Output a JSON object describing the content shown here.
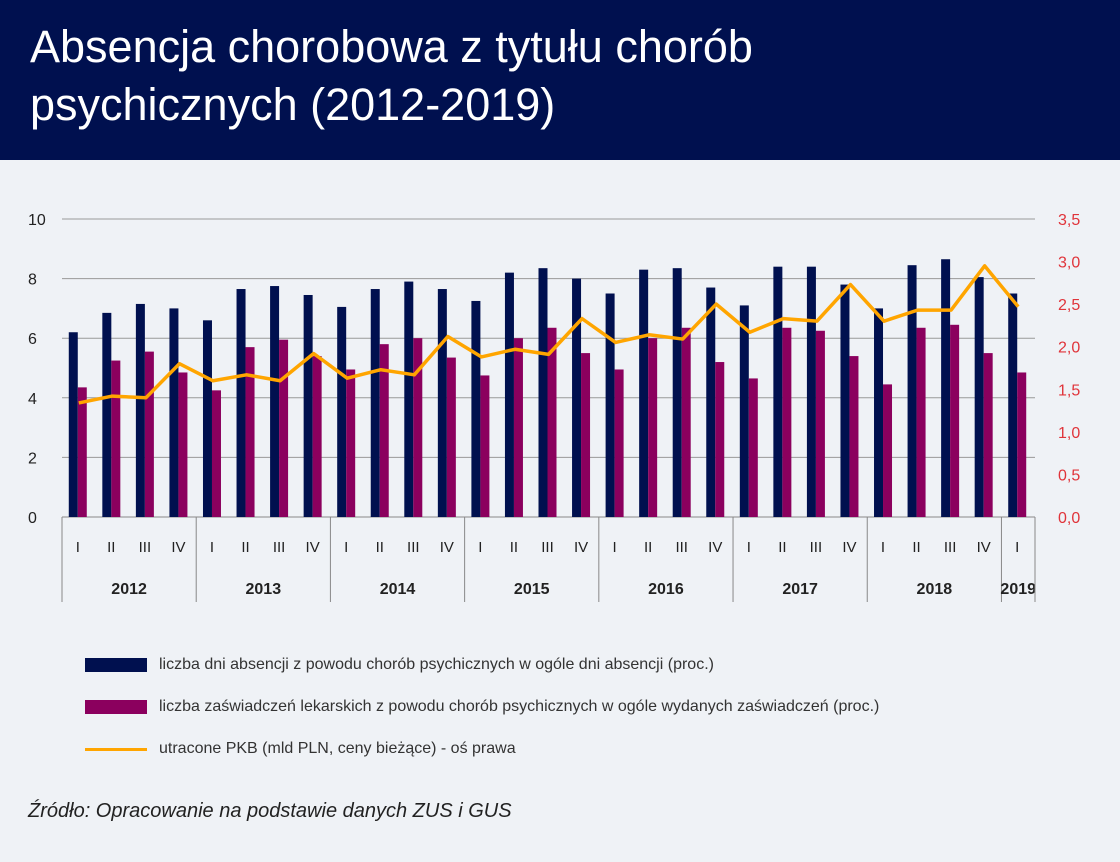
{
  "title": "Absencja chorobowa z tytułu chorób psychicznych (2012-2019)",
  "source": "Źródło: Opracowanie na podstawie danych ZUS i GUS",
  "colors": {
    "header_bg": "#00104f",
    "series1": "#00104f",
    "series2": "#8b005e",
    "series3": "#ffa500",
    "right_axis": "#e0343a"
  },
  "chart_data": {
    "type": "bar+line",
    "categories": [
      "I",
      "II",
      "III",
      "IV",
      "I",
      "II",
      "III",
      "IV",
      "I",
      "II",
      "III",
      "IV",
      "I",
      "II",
      "III",
      "IV",
      "I",
      "II",
      "III",
      "IV",
      "I",
      "II",
      "III",
      "IV",
      "I",
      "II",
      "III",
      "IV",
      "I"
    ],
    "years": [
      "2012",
      "2013",
      "2014",
      "2015",
      "2016",
      "2017",
      "2018",
      "2019"
    ],
    "left_axis": {
      "ylim": [
        0,
        10
      ],
      "ticks": [
        "0",
        "2",
        "4",
        "6",
        "8",
        "10"
      ]
    },
    "right_axis": {
      "ylim": [
        0,
        3.5
      ],
      "ticks": [
        "0,0",
        "0,5",
        "1,0",
        "1,5",
        "2,0",
        "2,5",
        "3,0",
        "3,5"
      ]
    },
    "grid": true,
    "legend_position": "bottom",
    "series": [
      {
        "name": "liczba dni absencji z powodu chorób psychicznych w ogóle dni absencji (proc.)",
        "type": "bar",
        "axis": "left",
        "values": [
          6.2,
          6.85,
          7.15,
          7.0,
          6.6,
          7.65,
          7.75,
          7.45,
          7.05,
          7.65,
          7.9,
          7.65,
          7.25,
          8.2,
          8.35,
          8.0,
          7.5,
          8.3,
          8.35,
          7.7,
          7.1,
          8.4,
          8.4,
          7.8,
          7.0,
          8.45,
          8.65,
          8.05,
          7.5
        ]
      },
      {
        "name": "liczba zaświadczeń lekarskich z powodu chorób psychicznych w ogóle wydanych zaświadczeń (proc.)",
        "type": "bar",
        "axis": "left",
        "values": [
          4.35,
          5.25,
          5.55,
          4.85,
          4.25,
          5.7,
          5.95,
          5.4,
          4.95,
          5.8,
          6.0,
          5.35,
          4.75,
          6.0,
          6.35,
          5.5,
          4.95,
          6.0,
          6.35,
          5.2,
          4.65,
          6.35,
          6.25,
          5.4,
          4.45,
          6.35,
          6.45,
          5.5,
          4.85
        ]
      },
      {
        "name": "utracone PKB (mld PLN, ceny bieżące) - oś prawa",
        "type": "line",
        "axis": "right",
        "values": [
          1.34,
          1.42,
          1.4,
          1.8,
          1.6,
          1.67,
          1.6,
          1.92,
          1.63,
          1.73,
          1.67,
          2.12,
          1.88,
          1.97,
          1.91,
          2.33,
          2.05,
          2.14,
          2.09,
          2.5,
          2.17,
          2.33,
          2.3,
          2.73,
          2.3,
          2.43,
          2.43,
          2.95,
          2.47
        ]
      }
    ]
  }
}
